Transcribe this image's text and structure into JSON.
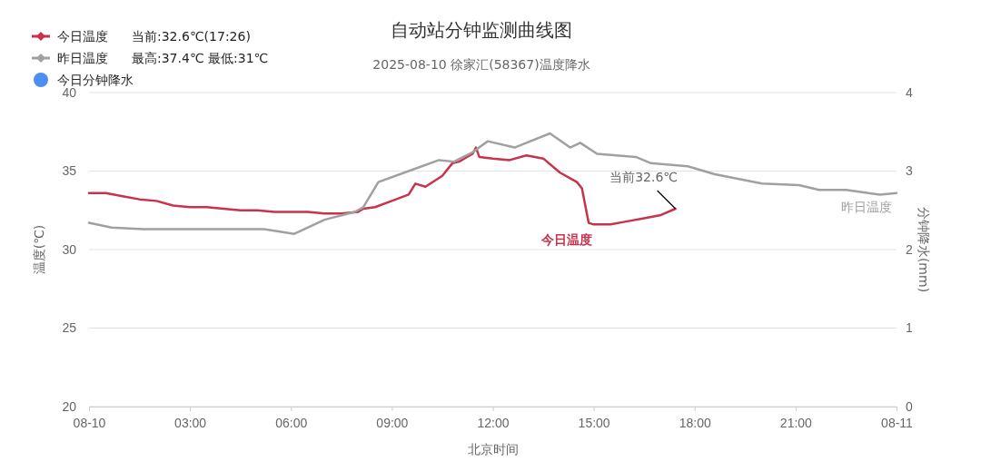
{
  "chart_data": {
    "type": "line",
    "title": "自动站分钟监测曲线图",
    "subtitle": "2025-08-10 徐家汇(58367)温度降水",
    "xlabel": "北京时间",
    "ylabel": "温度(℃)",
    "y2label": "分钟降水(mm)",
    "xlim": [
      0,
      24
    ],
    "xticks": [
      {
        "value": 0,
        "label": "08-10"
      },
      {
        "value": 3,
        "label": "03:00"
      },
      {
        "value": 6,
        "label": "06:00"
      },
      {
        "value": 9,
        "label": "09:00"
      },
      {
        "value": 12,
        "label": "12:00"
      },
      {
        "value": 15,
        "label": "15:00"
      },
      {
        "value": 18,
        "label": "18:00"
      },
      {
        "value": 21,
        "label": "21:00"
      },
      {
        "value": 24,
        "label": "08-11"
      }
    ],
    "ylim": [
      20,
      40
    ],
    "yticks": [
      20,
      25,
      30,
      35,
      40
    ],
    "y2lim": [
      0,
      4
    ],
    "y2ticks": [
      0,
      1,
      2,
      3,
      4
    ],
    "grid": "y",
    "legend": "top left",
    "annotations": [
      "当前:32.6℃(17:26)",
      "最高:37.4℃ 最低:31℃",
      {
        "text": "当前32.6℃",
        "x": 17.43,
        "y": 32.6
      }
    ],
    "series": [
      {
        "name": "今日温度",
        "color": "#c8324a",
        "x": [
          0,
          0.5,
          1,
          1.5,
          2,
          2.5,
          3,
          3.5,
          4,
          4.5,
          5,
          5.5,
          6,
          6.5,
          7,
          7.5,
          8,
          8.15,
          8.5,
          9,
          9.5,
          9.7,
          10,
          10.5,
          10.8,
          11,
          11.4,
          11.5,
          11.6,
          12,
          12.5,
          13,
          13.5,
          14,
          14.5,
          14.65,
          14.85,
          15,
          15.5,
          16,
          16.5,
          17,
          17.43
        ],
        "values": [
          33.6,
          33.6,
          33.4,
          33.2,
          33.1,
          32.8,
          32.7,
          32.7,
          32.6,
          32.5,
          32.5,
          32.4,
          32.4,
          32.4,
          32.3,
          32.3,
          32.4,
          32.6,
          32.7,
          33.1,
          33.5,
          34.2,
          34.0,
          34.7,
          35.5,
          35.6,
          36.1,
          36.5,
          35.9,
          35.8,
          35.7,
          36.0,
          35.8,
          34.9,
          34.3,
          33.9,
          31.7,
          31.6,
          31.6,
          31.8,
          32.0,
          32.2,
          32.6
        ]
      },
      {
        "name": "昨日温度",
        "color": "#a0a0a0",
        "x": [
          0,
          0.67,
          1.6,
          3.4,
          5.2,
          6.1,
          7.0,
          7.9,
          8.15,
          8.6,
          9.5,
          10.4,
          10.85,
          11.4,
          11.85,
          12.65,
          13.0,
          13.7,
          14.3,
          14.6,
          15.1,
          16.25,
          16.7,
          17.8,
          18.6,
          20.0,
          21.1,
          21.7,
          22.5,
          23.5,
          24.0
        ],
        "values": [
          31.7,
          31.4,
          31.3,
          31.3,
          31.3,
          31.0,
          31.9,
          32.4,
          32.7,
          34.3,
          35.0,
          35.7,
          35.6,
          36.2,
          36.9,
          36.5,
          36.8,
          37.4,
          36.5,
          36.8,
          36.1,
          35.9,
          35.5,
          35.3,
          34.8,
          34.2,
          34.1,
          33.8,
          33.8,
          33.5,
          33.6
        ]
      },
      {
        "name": "今日分钟降水",
        "color": "#4b8ff0"
      }
    ]
  }
}
